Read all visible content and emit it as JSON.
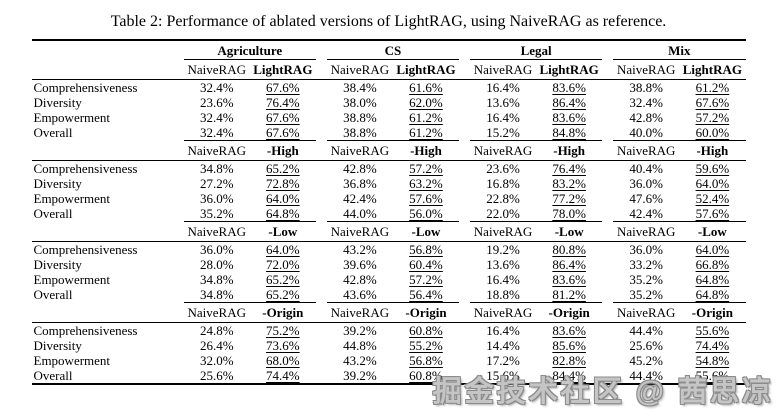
{
  "chart_data": {
    "type": "table",
    "title": "Table 2: Performance of ablated versions of LightRAG, using NaiveRAG as reference.",
    "groups": [
      "Agriculture",
      "CS",
      "Legal",
      "Mix"
    ],
    "baseline": "NaiveRAG",
    "metrics": [
      "Comprehensiveness",
      "Diversity",
      "Empowerment",
      "Overall"
    ],
    "blocks": [
      {
        "variant": "LightRAG",
        "rows": [
          {
            "metric": "Comprehensiveness",
            "pairs": [
              [
                "32.4%",
                "67.6%"
              ],
              [
                "38.4%",
                "61.6%"
              ],
              [
                "16.4%",
                "83.6%"
              ],
              [
                "38.8%",
                "61.2%"
              ]
            ]
          },
          {
            "metric": "Diversity",
            "pairs": [
              [
                "23.6%",
                "76.4%"
              ],
              [
                "38.0%",
                "62.0%"
              ],
              [
                "13.6%",
                "86.4%"
              ],
              [
                "32.4%",
                "67.6%"
              ]
            ]
          },
          {
            "metric": "Empowerment",
            "pairs": [
              [
                "32.4%",
                "67.6%"
              ],
              [
                "38.8%",
                "61.2%"
              ],
              [
                "16.4%",
                "83.6%"
              ],
              [
                "42.8%",
                "57.2%"
              ]
            ]
          },
          {
            "metric": "Overall",
            "pairs": [
              [
                "32.4%",
                "67.6%"
              ],
              [
                "38.8%",
                "61.2%"
              ],
              [
                "15.2%",
                "84.8%"
              ],
              [
                "40.0%",
                "60.0%"
              ]
            ]
          }
        ]
      },
      {
        "variant": "-High",
        "rows": [
          {
            "metric": "Comprehensiveness",
            "pairs": [
              [
                "34.8%",
                "65.2%"
              ],
              [
                "42.8%",
                "57.2%"
              ],
              [
                "23.6%",
                "76.4%"
              ],
              [
                "40.4%",
                "59.6%"
              ]
            ]
          },
          {
            "metric": "Diversity",
            "pairs": [
              [
                "27.2%",
                "72.8%"
              ],
              [
                "36.8%",
                "63.2%"
              ],
              [
                "16.8%",
                "83.2%"
              ],
              [
                "36.0%",
                "64.0%"
              ]
            ]
          },
          {
            "metric": "Empowerment",
            "pairs": [
              [
                "36.0%",
                "64.0%"
              ],
              [
                "42.4%",
                "57.6%"
              ],
              [
                "22.8%",
                "77.2%"
              ],
              [
                "47.6%",
                "52.4%"
              ]
            ]
          },
          {
            "metric": "Overall",
            "pairs": [
              [
                "35.2%",
                "64.8%"
              ],
              [
                "44.0%",
                "56.0%"
              ],
              [
                "22.0%",
                "78.0%"
              ],
              [
                "42.4%",
                "57.6%"
              ]
            ]
          }
        ]
      },
      {
        "variant": "-Low",
        "rows": [
          {
            "metric": "Comprehensiveness",
            "pairs": [
              [
                "36.0%",
                "64.0%"
              ],
              [
                "43.2%",
                "56.8%"
              ],
              [
                "19.2%",
                "80.8%"
              ],
              [
                "36.0%",
                "64.0%"
              ]
            ]
          },
          {
            "metric": "Diversity",
            "pairs": [
              [
                "28.0%",
                "72.0%"
              ],
              [
                "39.6%",
                "60.4%"
              ],
              [
                "13.6%",
                "86.4%"
              ],
              [
                "33.2%",
                "66.8%"
              ]
            ]
          },
          {
            "metric": "Empowerment",
            "pairs": [
              [
                "34.8%",
                "65.2%"
              ],
              [
                "42.8%",
                "57.2%"
              ],
              [
                "16.4%",
                "83.6%"
              ],
              [
                "35.2%",
                "64.8%"
              ]
            ]
          },
          {
            "metric": "Overall",
            "pairs": [
              [
                "34.8%",
                "65.2%"
              ],
              [
                "43.6%",
                "56.4%"
              ],
              [
                "18.8%",
                "81.2%"
              ],
              [
                "35.2%",
                "64.8%"
              ]
            ]
          }
        ]
      },
      {
        "variant": "-Origin",
        "rows": [
          {
            "metric": "Comprehensiveness",
            "pairs": [
              [
                "24.8%",
                "75.2%"
              ],
              [
                "39.2%",
                "60.8%"
              ],
              [
                "16.4%",
                "83.6%"
              ],
              [
                "44.4%",
                "55.6%"
              ]
            ]
          },
          {
            "metric": "Diversity",
            "pairs": [
              [
                "26.4%",
                "73.6%"
              ],
              [
                "44.8%",
                "55.2%"
              ],
              [
                "14.4%",
                "85.6%"
              ],
              [
                "25.6%",
                "74.4%"
              ]
            ]
          },
          {
            "metric": "Empowerment",
            "pairs": [
              [
                "32.0%",
                "68.0%"
              ],
              [
                "43.2%",
                "56.8%"
              ],
              [
                "17.2%",
                "82.8%"
              ],
              [
                "45.2%",
                "54.8%"
              ]
            ]
          },
          {
            "metric": "Overall",
            "pairs": [
              [
                "25.6%",
                "74.4%"
              ],
              [
                "39.2%",
                "60.8%"
              ],
              [
                "15.6%",
                "84.4%"
              ],
              [
                "44.4%",
                "55.6%"
              ]
            ]
          }
        ]
      }
    ]
  },
  "watermark": "掘金技术社区 @ 茜思凉"
}
